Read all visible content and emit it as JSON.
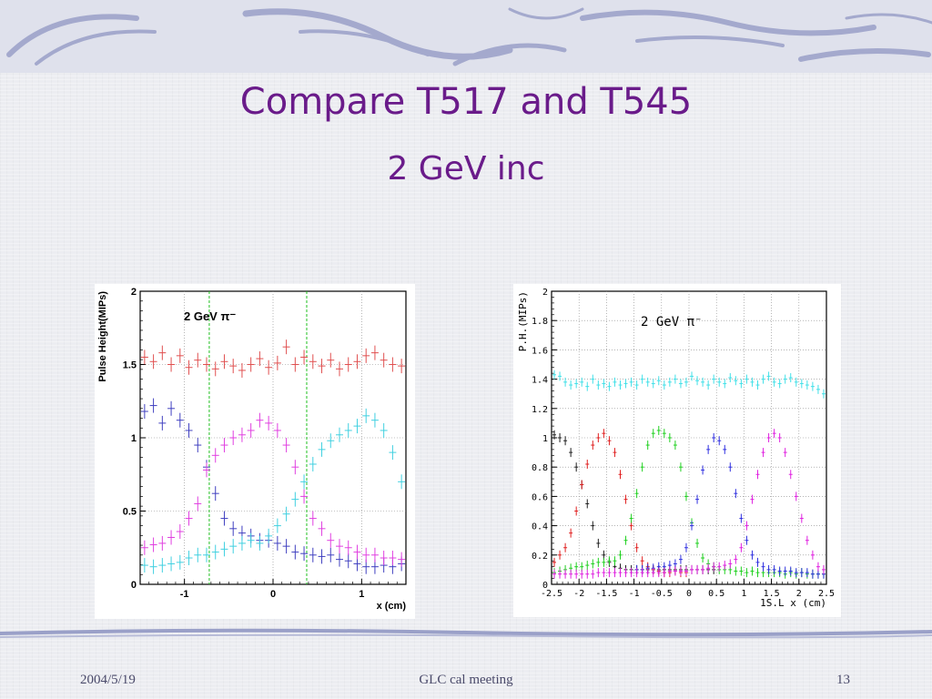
{
  "slide": {
    "title": "Compare T517 and T545",
    "subtitle": "2 GeV inc",
    "footer_date": "2004/5/19",
    "footer_center": "GLC cal meeting",
    "page_number": "13",
    "title_color": "#6a1b8a"
  },
  "chart_data": [
    {
      "type": "scatter",
      "annotation": "2 GeV π⁻",
      "xlabel": "x (cm)",
      "ylabel": "Pulse Height(MIPs)",
      "xlim": [
        -1.5,
        1.5
      ],
      "ylim": [
        0,
        2
      ],
      "x_ticks": [
        "-1",
        "0",
        "1"
      ],
      "y_ticks": [
        "0",
        "0.5",
        "1",
        "1.5",
        "2"
      ],
      "grid": true,
      "vertical_markers": [
        -0.72,
        0.38
      ],
      "series": [
        {
          "color": "#e05050",
          "x": [
            -1.45,
            -1.35,
            -1.25,
            -1.15,
            -1.05,
            -0.95,
            -0.85,
            -0.75,
            -0.65,
            -0.55,
            -0.45,
            -0.35,
            -0.25,
            -0.15,
            -0.05,
            0.05,
            0.15,
            0.25,
            0.35,
            0.45,
            0.55,
            0.65,
            0.75,
            0.85,
            0.95,
            1.05,
            1.15,
            1.25,
            1.35,
            1.45
          ],
          "y": [
            1.55,
            1.52,
            1.58,
            1.5,
            1.56,
            1.48,
            1.53,
            1.5,
            1.47,
            1.52,
            1.49,
            1.46,
            1.5,
            1.54,
            1.48,
            1.51,
            1.62,
            1.5,
            1.55,
            1.52,
            1.49,
            1.53,
            1.47,
            1.5,
            1.52,
            1.56,
            1.58,
            1.53,
            1.5,
            1.49
          ]
        },
        {
          "color": "#4040c0",
          "x": [
            -1.45,
            -1.35,
            -1.25,
            -1.15,
            -1.05,
            -0.95,
            -0.85,
            -0.75,
            -0.65,
            -0.55,
            -0.45,
            -0.35,
            -0.25,
            -0.15,
            -0.05,
            0.05,
            0.15,
            0.25,
            0.35,
            0.45,
            0.55,
            0.65,
            0.75,
            0.85,
            0.95,
            1.05,
            1.15,
            1.25,
            1.35,
            1.45
          ],
          "y": [
            1.18,
            1.22,
            1.1,
            1.2,
            1.12,
            1.05,
            0.95,
            0.8,
            0.62,
            0.45,
            0.38,
            0.35,
            0.33,
            0.3,
            0.3,
            0.28,
            0.26,
            0.22,
            0.21,
            0.2,
            0.19,
            0.2,
            0.17,
            0.16,
            0.14,
            0.12,
            0.12,
            0.13,
            0.12,
            0.14
          ]
        },
        {
          "color": "#e040e0",
          "x": [
            -1.45,
            -1.35,
            -1.25,
            -1.15,
            -1.05,
            -0.95,
            -0.85,
            -0.75,
            -0.65,
            -0.55,
            -0.45,
            -0.35,
            -0.25,
            -0.15,
            -0.05,
            0.05,
            0.15,
            0.25,
            0.35,
            0.45,
            0.55,
            0.65,
            0.75,
            0.85,
            0.95,
            1.05,
            1.15,
            1.25,
            1.35,
            1.45
          ],
          "y": [
            0.25,
            0.27,
            0.28,
            0.32,
            0.36,
            0.45,
            0.55,
            0.78,
            0.88,
            0.95,
            1.0,
            1.02,
            1.05,
            1.12,
            1.1,
            1.05,
            0.95,
            0.8,
            0.6,
            0.45,
            0.38,
            0.3,
            0.26,
            0.25,
            0.22,
            0.2,
            0.2,
            0.18,
            0.18,
            0.17
          ]
        },
        {
          "color": "#40d0e0",
          "x": [
            -1.45,
            -1.35,
            -1.25,
            -1.15,
            -1.05,
            -0.95,
            -0.85,
            -0.75,
            -0.65,
            -0.55,
            -0.45,
            -0.35,
            -0.25,
            -0.15,
            -0.05,
            0.05,
            0.15,
            0.25,
            0.35,
            0.45,
            0.55,
            0.65,
            0.75,
            0.85,
            0.95,
            1.05,
            1.15,
            1.25,
            1.35,
            1.45
          ],
          "y": [
            0.13,
            0.12,
            0.13,
            0.14,
            0.15,
            0.18,
            0.2,
            0.2,
            0.22,
            0.24,
            0.26,
            0.28,
            0.3,
            0.28,
            0.33,
            0.4,
            0.48,
            0.58,
            0.7,
            0.82,
            0.92,
            0.98,
            1.02,
            1.05,
            1.08,
            1.15,
            1.12,
            1.05,
            0.9,
            0.7
          ]
        }
      ]
    },
    {
      "type": "scatter",
      "annotation": "2 GeV π⁻",
      "xlabel": "1S.L x (cm)",
      "ylabel": "P.H.(MIPs)",
      "xlim": [
        -2.5,
        2.5
      ],
      "ylim": [
        0,
        2
      ],
      "x_ticks": [
        "-2.5",
        "-2",
        "-1.5",
        "-1",
        "-0.5",
        "0",
        "0.5",
        "1",
        "1.5",
        "2",
        "2.5"
      ],
      "y_ticks": [
        "0",
        "0.2",
        "0.4",
        "0.6",
        "0.8",
        "1",
        "1.2",
        "1.4",
        "1.6",
        "1.8",
        "2"
      ],
      "grid": true,
      "series": [
        {
          "color": "#40e0e8",
          "x": [
            -2.45,
            -2.35,
            -2.25,
            -2.15,
            -2.05,
            -1.95,
            -1.85,
            -1.75,
            -1.65,
            -1.55,
            -1.45,
            -1.35,
            -1.25,
            -1.15,
            -1.05,
            -0.95,
            -0.85,
            -0.75,
            -0.65,
            -0.55,
            -0.45,
            -0.35,
            -0.25,
            -0.15,
            -0.05,
            0.05,
            0.15,
            0.25,
            0.35,
            0.45,
            0.55,
            0.65,
            0.75,
            0.85,
            0.95,
            1.05,
            1.15,
            1.25,
            1.35,
            1.45,
            1.55,
            1.65,
            1.75,
            1.85,
            1.95,
            2.05,
            2.15,
            2.25,
            2.35,
            2.45
          ],
          "y": [
            1.43,
            1.42,
            1.38,
            1.36,
            1.37,
            1.38,
            1.35,
            1.4,
            1.36,
            1.37,
            1.35,
            1.38,
            1.36,
            1.37,
            1.38,
            1.36,
            1.4,
            1.38,
            1.37,
            1.39,
            1.36,
            1.38,
            1.4,
            1.37,
            1.38,
            1.42,
            1.39,
            1.38,
            1.36,
            1.4,
            1.38,
            1.37,
            1.41,
            1.39,
            1.37,
            1.4,
            1.38,
            1.36,
            1.4,
            1.42,
            1.38,
            1.37,
            1.4,
            1.41,
            1.38,
            1.37,
            1.36,
            1.35,
            1.33,
            1.3
          ]
        },
        {
          "color": "#202020",
          "x": [
            -2.45,
            -2.35,
            -2.25,
            -2.15,
            -2.05,
            -1.95,
            -1.85,
            -1.75,
            -1.65,
            -1.55,
            -1.45,
            -1.35,
            -1.25,
            -1.15,
            -1.05,
            -0.95,
            -0.85,
            -0.75,
            -0.65,
            -0.55,
            -0.45,
            -0.35,
            -0.25,
            -0.15,
            -0.05,
            0.05,
            0.15,
            0.25,
            0.35,
            0.45
          ],
          "y": [
            1.02,
            1.0,
            0.98,
            0.9,
            0.8,
            0.68,
            0.55,
            0.4,
            0.28,
            0.2,
            0.15,
            0.12,
            0.11,
            0.1,
            0.1,
            0.1,
            0.1,
            0.1,
            0.1,
            0.1,
            0.1,
            0.1,
            0.1,
            0.1,
            0.1,
            0.1,
            0.1,
            0.1,
            0.1,
            0.1
          ]
        },
        {
          "color": "#e02020",
          "x": [
            -2.45,
            -2.35,
            -2.25,
            -2.15,
            -2.05,
            -1.95,
            -1.85,
            -1.75,
            -1.65,
            -1.55,
            -1.45,
            -1.35,
            -1.25,
            -1.15,
            -1.05,
            -0.95,
            -0.85,
            -0.75,
            -0.65,
            -0.55,
            -0.45,
            -0.35,
            -0.25,
            -0.15,
            -0.05
          ],
          "y": [
            0.15,
            0.2,
            0.25,
            0.35,
            0.5,
            0.68,
            0.82,
            0.95,
            1.0,
            1.03,
            0.98,
            0.9,
            0.75,
            0.58,
            0.4,
            0.25,
            0.16,
            0.12,
            0.1,
            0.09,
            0.08,
            0.08,
            0.09,
            0.08,
            0.08
          ]
        },
        {
          "color": "#20d020",
          "x": [
            -2.45,
            -2.35,
            -2.25,
            -2.15,
            -2.05,
            -1.95,
            -1.85,
            -1.75,
            -1.65,
            -1.55,
            -1.45,
            -1.35,
            -1.25,
            -1.15,
            -1.05,
            -0.95,
            -0.85,
            -0.75,
            -0.65,
            -0.55,
            -0.45,
            -0.35,
            -0.25,
            -0.15,
            -0.05,
            0.05,
            0.15,
            0.25,
            0.35,
            0.45,
            0.55,
            0.65,
            0.75,
            0.85,
            0.95,
            1.05,
            1.15,
            1.25,
            1.35,
            1.45,
            1.55,
            1.65,
            1.75,
            1.85,
            1.95,
            2.05,
            2.15,
            2.25,
            2.35,
            2.45
          ],
          "y": [
            0.08,
            0.09,
            0.1,
            0.11,
            0.12,
            0.12,
            0.13,
            0.14,
            0.15,
            0.15,
            0.16,
            0.16,
            0.2,
            0.3,
            0.45,
            0.62,
            0.8,
            0.95,
            1.03,
            1.05,
            1.03,
            1.0,
            0.95,
            0.8,
            0.6,
            0.42,
            0.28,
            0.18,
            0.14,
            0.12,
            0.1,
            0.1,
            0.1,
            0.09,
            0.09,
            0.08,
            0.09,
            0.08,
            0.08,
            0.08,
            0.08,
            0.08,
            0.07,
            0.08,
            0.07,
            0.08,
            0.07,
            0.07,
            0.07,
            0.07
          ]
        },
        {
          "color": "#3030e0",
          "x": [
            -0.95,
            -0.85,
            -0.75,
            -0.65,
            -0.55,
            -0.45,
            -0.35,
            -0.25,
            -0.15,
            -0.05,
            0.05,
            0.15,
            0.25,
            0.35,
            0.45,
            0.55,
            0.65,
            0.75,
            0.85,
            0.95,
            1.05,
            1.15,
            1.25,
            1.35,
            1.45,
            1.55,
            1.65,
            1.75,
            1.85,
            1.95,
            2.05,
            2.15,
            2.25,
            2.35,
            2.45
          ],
          "y": [
            0.1,
            0.1,
            0.11,
            0.11,
            0.12,
            0.12,
            0.13,
            0.14,
            0.17,
            0.25,
            0.4,
            0.58,
            0.78,
            0.92,
            1.0,
            0.98,
            0.92,
            0.8,
            0.62,
            0.45,
            0.3,
            0.2,
            0.15,
            0.12,
            0.1,
            0.1,
            0.09,
            0.09,
            0.09,
            0.08,
            0.08,
            0.08,
            0.07,
            0.07,
            0.07
          ]
        },
        {
          "color": "#e020e0",
          "x": [
            -2.45,
            -2.35,
            -2.25,
            -2.15,
            -2.05,
            -1.95,
            -1.85,
            -1.75,
            -1.65,
            -1.55,
            -1.45,
            -1.35,
            -1.25,
            -1.15,
            -1.05,
            -0.95,
            -0.85,
            -0.75,
            -0.65,
            -0.55,
            -0.45,
            -0.35,
            -0.25,
            -0.15,
            -0.05,
            0.05,
            0.15,
            0.25,
            0.35,
            0.45,
            0.55,
            0.65,
            0.75,
            0.85,
            0.95,
            1.05,
            1.15,
            1.25,
            1.35,
            1.45,
            1.55,
            1.65,
            1.75,
            1.85,
            1.95,
            2.05,
            2.15,
            2.25,
            2.35,
            2.45
          ],
          "y": [
            0.07,
            0.07,
            0.07,
            0.07,
            0.07,
            0.07,
            0.07,
            0.07,
            0.08,
            0.08,
            0.08,
            0.08,
            0.08,
            0.08,
            0.08,
            0.08,
            0.08,
            0.08,
            0.08,
            0.08,
            0.08,
            0.09,
            0.09,
            0.09,
            0.09,
            0.1,
            0.1,
            0.1,
            0.11,
            0.12,
            0.12,
            0.13,
            0.14,
            0.17,
            0.25,
            0.4,
            0.58,
            0.75,
            0.9,
            1.0,
            1.03,
            1.0,
            0.9,
            0.75,
            0.6,
            0.45,
            0.3,
            0.2,
            0.12,
            0.1
          ]
        }
      ]
    }
  ]
}
